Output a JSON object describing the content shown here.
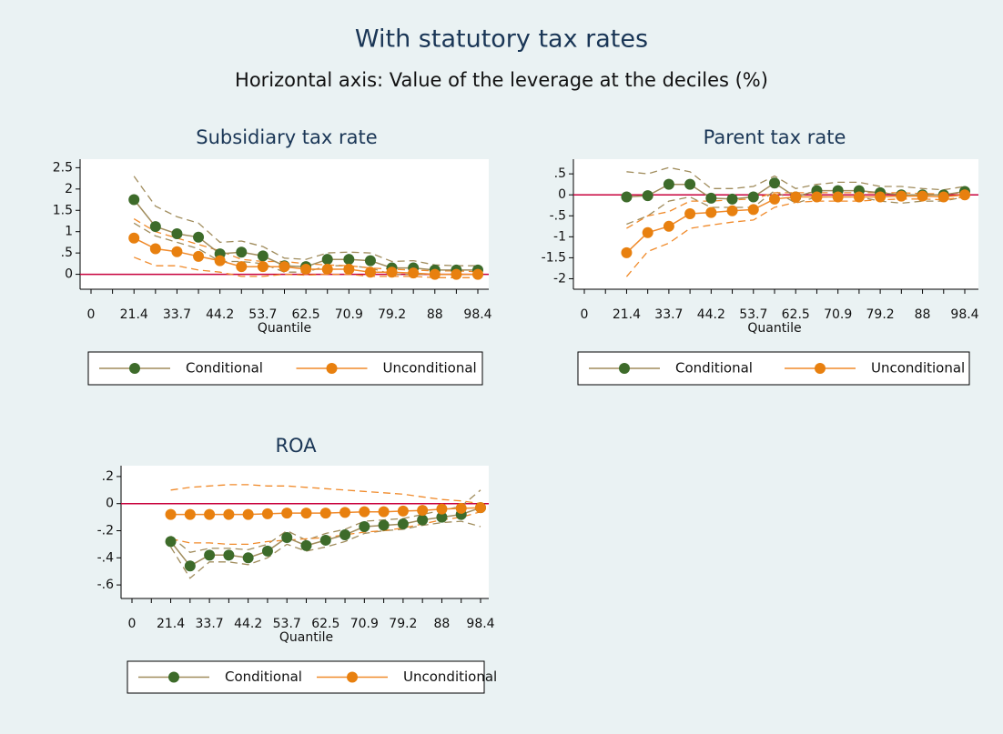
{
  "title": "With statutory tax rates",
  "subtitle": "Horizontal axis: Value of the leverage at the deciles (%)",
  "chart_data": [
    {
      "type": "line",
      "title": "Subsidiary tax rate",
      "x_label": "Quantile",
      "categories": [
        "0",
        null,
        "21.4",
        null,
        "33.7",
        null,
        "44.2",
        null,
        "53.7",
        null,
        "62.5",
        null,
        "70.9",
        null,
        "79.2",
        null,
        "88",
        null,
        "98.4"
      ],
      "ylim": [
        -0.35,
        2.7
      ],
      "yticks": [
        0,
        {
          "value": 0.5,
          "label": ".5"
        },
        1,
        1.5,
        2,
        2.5
      ],
      "yline": 0,
      "series": [
        {
          "name": "Conditional",
          "color": "#3d6b2a",
          "ci_color": "#a08c5c",
          "values": [
            null,
            null,
            1.75,
            1.12,
            0.95,
            0.87,
            0.48,
            0.52,
            0.43,
            0.2,
            0.18,
            0.35,
            0.35,
            0.32,
            0.15,
            0.15,
            0.1,
            0.1,
            0.1
          ],
          "upper": [
            null,
            null,
            2.3,
            1.6,
            1.35,
            1.2,
            0.75,
            0.78,
            0.65,
            0.38,
            0.35,
            0.5,
            0.52,
            0.5,
            0.3,
            0.32,
            0.22,
            0.2,
            0.2
          ],
          "lower": [
            null,
            null,
            1.2,
            0.9,
            0.75,
            0.6,
            0.3,
            0.3,
            0.25,
            0.05,
            0.05,
            0.2,
            0.2,
            0.15,
            0,
            0,
            0,
            0,
            0
          ]
        },
        {
          "name": "Unconditional",
          "color": "#e8800f",
          "ci_color": "#f08a2a",
          "values": [
            null,
            null,
            0.85,
            0.6,
            0.53,
            0.42,
            0.32,
            0.18,
            0.18,
            0.18,
            0.12,
            0.12,
            0.12,
            0.05,
            0.05,
            0.03,
            0,
            0,
            0
          ],
          "upper": [
            null,
            null,
            1.3,
            1.0,
            0.85,
            0.7,
            0.55,
            0.35,
            0.3,
            0.3,
            0.25,
            0.22,
            0.2,
            0.15,
            0.12,
            0.1,
            0.08,
            0.08,
            0.06
          ],
          "lower": [
            null,
            null,
            0.4,
            0.2,
            0.2,
            0.1,
            0.05,
            -0.05,
            -0.05,
            0,
            -0.02,
            0,
            0,
            -0.05,
            -0.05,
            -0.05,
            -0.08,
            -0.08,
            -0.08
          ]
        }
      ]
    },
    {
      "type": "line",
      "title": "Parent tax rate",
      "x_label": "Quantile",
      "categories": [
        "0",
        null,
        "21.4",
        null,
        "33.7",
        null,
        "44.2",
        null,
        "53.7",
        null,
        "62.5",
        null,
        "70.9",
        null,
        "79.2",
        null,
        "88",
        null,
        "98.4"
      ],
      "ylim": [
        -2.25,
        0.85
      ],
      "yticks": [
        -2,
        -1.5,
        -1,
        {
          "value": -0.5,
          "label": "-.5"
        },
        0,
        {
          "value": 0.5,
          "label": ".5"
        }
      ],
      "yline": 0,
      "series": [
        {
          "name": "Conditional",
          "color": "#3d6b2a",
          "ci_color": "#a08c5c",
          "values": [
            null,
            null,
            -0.05,
            -0.02,
            0.25,
            0.25,
            -0.08,
            -0.1,
            -0.05,
            0.28,
            -0.05,
            0.1,
            0.1,
            0.1,
            0.05,
            0,
            0,
            0,
            0.08
          ],
          "upper": [
            null,
            null,
            0.55,
            0.5,
            0.65,
            0.55,
            0.15,
            0.15,
            0.2,
            0.45,
            0.15,
            0.25,
            0.3,
            0.3,
            0.2,
            0.2,
            0.15,
            0.12,
            0.2
          ],
          "lower": [
            null,
            null,
            -0.7,
            -0.5,
            -0.15,
            -0.05,
            -0.3,
            -0.3,
            -0.3,
            0.1,
            -0.2,
            -0.05,
            -0.05,
            -0.05,
            -0.15,
            -0.2,
            -0.15,
            -0.15,
            -0.05
          ]
        },
        {
          "name": "Unconditional",
          "color": "#e8800f",
          "ci_color": "#f08a2a",
          "values": [
            null,
            null,
            -1.38,
            -0.9,
            -0.75,
            -0.45,
            -0.42,
            -0.38,
            -0.35,
            -0.1,
            -0.05,
            -0.05,
            -0.05,
            -0.05,
            -0.05,
            -0.03,
            -0.03,
            -0.05,
            0
          ],
          "upper": [
            null,
            null,
            -0.8,
            -0.5,
            -0.4,
            -0.15,
            -0.15,
            -0.12,
            -0.1,
            0.05,
            0.05,
            0.05,
            0.05,
            0.05,
            0.05,
            0.05,
            0.03,
            0.02,
            0.05
          ],
          "lower": [
            null,
            null,
            -1.95,
            -1.35,
            -1.15,
            -0.8,
            -0.72,
            -0.65,
            -0.6,
            -0.3,
            -0.18,
            -0.15,
            -0.15,
            -0.15,
            -0.12,
            -0.1,
            -0.1,
            -0.12,
            -0.05
          ]
        }
      ]
    },
    {
      "type": "line",
      "title": "ROA",
      "x_label": "Quantile",
      "categories": [
        "0",
        null,
        "21.4",
        null,
        "33.7",
        null,
        "44.2",
        null,
        "53.7",
        null,
        "62.5",
        null,
        "70.9",
        null,
        "79.2",
        null,
        "88",
        null,
        "98.4"
      ],
      "ylim": [
        -0.7,
        0.28
      ],
      "yticks": [
        {
          "value": -0.6,
          "label": "-.6"
        },
        {
          "value": -0.4,
          "label": "-.4"
        },
        {
          "value": -0.2,
          "label": "-.2"
        },
        0,
        {
          "value": 0.2,
          "label": ".2"
        }
      ],
      "yline": 0,
      "series": [
        {
          "name": "Conditional",
          "color": "#3d6b2a",
          "ci_color": "#a08c5c",
          "values": [
            null,
            null,
            -0.28,
            -0.46,
            -0.38,
            -0.38,
            -0.4,
            -0.35,
            -0.25,
            -0.31,
            -0.27,
            -0.23,
            -0.17,
            -0.16,
            -0.15,
            -0.12,
            -0.1,
            -0.08,
            -0.03
          ],
          "upper": [
            null,
            null,
            -0.24,
            -0.36,
            -0.33,
            -0.33,
            -0.34,
            -0.3,
            -0.2,
            -0.27,
            -0.22,
            -0.19,
            -0.13,
            -0.12,
            -0.11,
            -0.08,
            -0.05,
            -0.02,
            0.1
          ],
          "lower": [
            null,
            null,
            -0.32,
            -0.55,
            -0.43,
            -0.43,
            -0.45,
            -0.4,
            -0.3,
            -0.35,
            -0.32,
            -0.28,
            -0.22,
            -0.2,
            -0.19,
            -0.16,
            -0.14,
            -0.13,
            -0.17
          ]
        },
        {
          "name": "Unconditional",
          "color": "#e8800f",
          "ci_color": "#f08a2a",
          "values": [
            null,
            null,
            -0.08,
            -0.08,
            -0.08,
            -0.08,
            -0.08,
            -0.075,
            -0.07,
            -0.07,
            -0.07,
            -0.065,
            -0.06,
            -0.06,
            -0.055,
            -0.05,
            -0.04,
            -0.035,
            -0.03
          ],
          "upper": [
            null,
            null,
            0.1,
            0.12,
            0.13,
            0.14,
            0.14,
            0.13,
            0.13,
            0.12,
            0.11,
            0.1,
            0.09,
            0.08,
            0.07,
            0.05,
            0.03,
            0.02,
            0
          ],
          "lower": [
            null,
            null,
            -0.26,
            -0.29,
            -0.29,
            -0.3,
            -0.3,
            -0.28,
            -0.27,
            -0.26,
            -0.25,
            -0.23,
            -0.21,
            -0.2,
            -0.18,
            -0.15,
            -0.12,
            -0.1,
            -0.06
          ]
        }
      ]
    }
  ]
}
